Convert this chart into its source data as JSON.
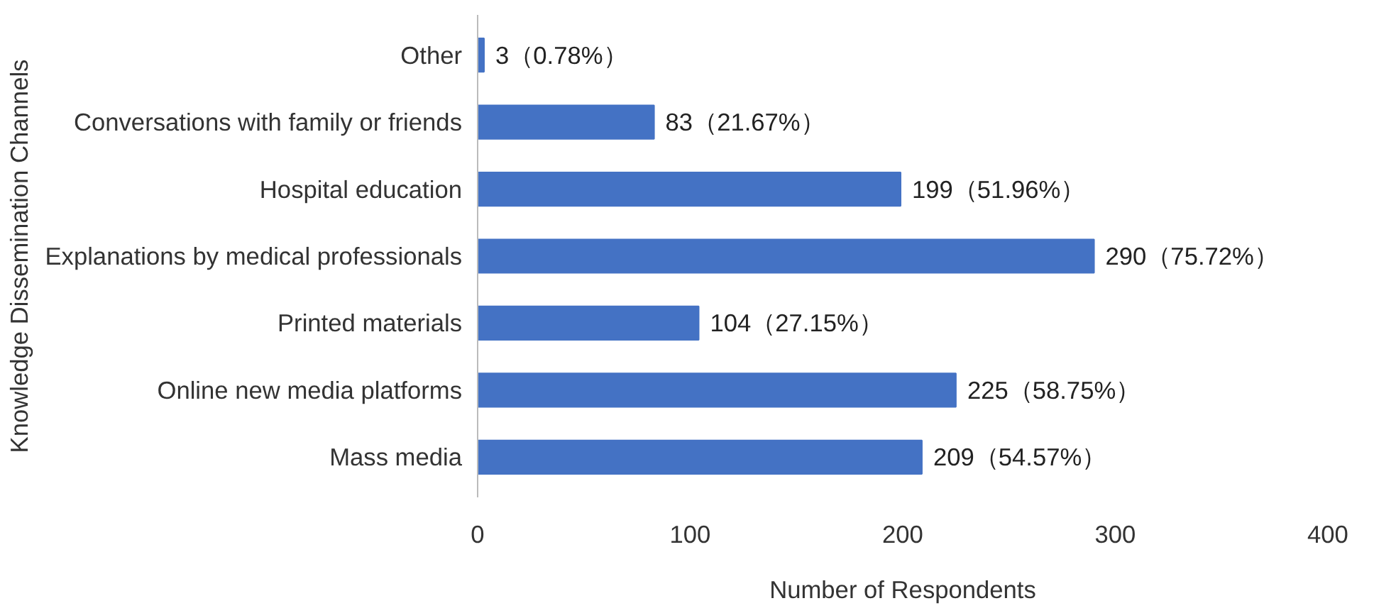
{
  "chart_data": {
    "type": "bar",
    "orientation": "horizontal",
    "xlabel": "Number of Respondents",
    "ylabel": "Knowledge Dissemination Channels",
    "categories": [
      "Other",
      "Conversations with family or friends",
      "Hospital education",
      "Explanations by medical professionals",
      "Printed materials",
      "Online new media platforms",
      "Mass media"
    ],
    "values": [
      3,
      83,
      199,
      290,
      104,
      225,
      209
    ],
    "value_labels": [
      "3（0.78%）",
      "83（21.67%）",
      "199（51.96%）",
      "290（75.72%）",
      "104（27.15%）",
      "225（58.75%）",
      "209（54.57%）"
    ],
    "color": "#4472c4",
    "xlim": [
      0,
      400
    ],
    "xticks": [
      0,
      100,
      200,
      300,
      400
    ],
    "grid": false
  }
}
